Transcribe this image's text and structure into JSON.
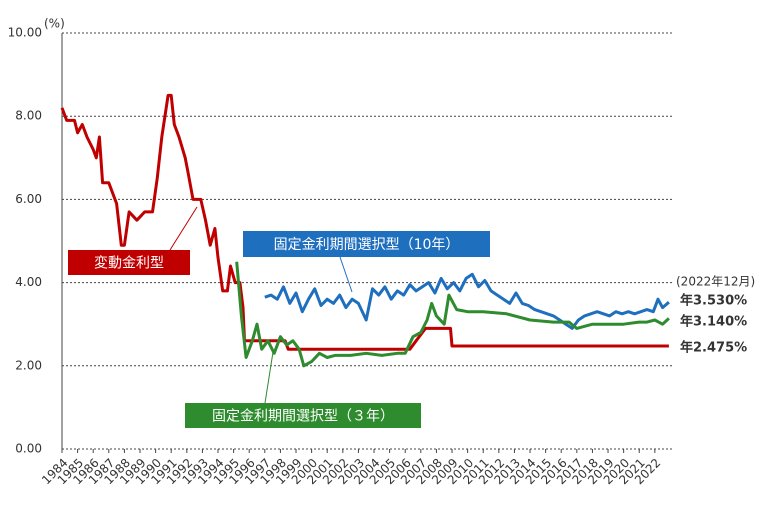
{
  "chart_data": {
    "type": "line",
    "y_label": "(%)",
    "xlim": [
      1984,
      2023.1
    ],
    "ylim": [
      0,
      10
    ],
    "yticks": [
      {
        "value": 0,
        "label": "0.00"
      },
      {
        "value": 2,
        "label": "2.00"
      },
      {
        "value": 4,
        "label": "4.00"
      },
      {
        "value": 6,
        "label": "6.00"
      },
      {
        "value": 8,
        "label": "8.00"
      },
      {
        "value": 10,
        "label": "10.00"
      }
    ],
    "xticks": [
      1984,
      1985,
      1986,
      1987,
      1988,
      1989,
      1990,
      1991,
      1992,
      1993,
      1994,
      1995,
      1996,
      1997,
      1998,
      1999,
      2000,
      2001,
      2002,
      2003,
      2004,
      2005,
      2006,
      2007,
      2008,
      2009,
      2010,
      2011,
      2012,
      2013,
      2014,
      2015,
      2016,
      2017,
      2018,
      2019,
      2020,
      2021,
      2022
    ],
    "grid": true,
    "date_note": "(2022年12月)",
    "series": [
      {
        "name": "変動金利型",
        "color": "#c00000",
        "end_label": "年2.475%",
        "x": [
          1984.0,
          1984.3,
          1984.8,
          1985.0,
          1985.3,
          1985.6,
          1986.0,
          1986.2,
          1986.4,
          1986.6,
          1987.0,
          1987.5,
          1987.8,
          1988.0,
          1988.3,
          1988.8,
          1989.3,
          1989.8,
          1990.1,
          1990.4,
          1990.8,
          1991.0,
          1991.2,
          1991.5,
          1991.9,
          1992.1,
          1992.4,
          1992.9,
          1993.2,
          1993.5,
          1993.8,
          1994.0,
          1994.3,
          1994.6,
          1994.8,
          1995.1,
          1995.4,
          1995.6,
          1995.7,
          1998.3,
          1998.5,
          2006.3,
          2006.7,
          2007.3,
          2008.9,
          2009.0,
          2022.9
        ],
        "values": [
          8.2,
          7.9,
          7.9,
          7.6,
          7.8,
          7.5,
          7.2,
          7.0,
          7.5,
          6.4,
          6.4,
          5.9,
          4.9,
          4.9,
          5.7,
          5.5,
          5.7,
          5.7,
          6.5,
          7.5,
          8.5,
          8.5,
          7.8,
          7.5,
          7.0,
          6.6,
          6.0,
          6.0,
          5.5,
          4.9,
          5.3,
          4.6,
          3.8,
          3.8,
          4.4,
          4.0,
          4.0,
          3.4,
          2.6,
          2.6,
          2.4,
          2.4,
          2.6,
          2.9,
          2.9,
          2.475,
          2.475
        ]
      },
      {
        "name": "固定金利期間選択型（10年）",
        "color": "#1f6fbf",
        "end_label": "年3.530%",
        "x": [
          1997.0,
          1997.4,
          1997.8,
          1998.2,
          1998.6,
          1999.0,
          1999.4,
          1999.8,
          2000.2,
          2000.6,
          2001.0,
          2001.4,
          2001.8,
          2002.2,
          2002.6,
          2003.0,
          2003.5,
          2003.9,
          2004.3,
          2004.7,
          2005.1,
          2005.5,
          2005.9,
          2006.3,
          2006.7,
          2007.1,
          2007.5,
          2007.9,
          2008.3,
          2008.7,
          2009.1,
          2009.5,
          2009.9,
          2010.3,
          2010.7,
          2011.1,
          2011.5,
          2011.9,
          2012.3,
          2012.7,
          2013.1,
          2013.5,
          2013.9,
          2014.3,
          2014.7,
          2015.1,
          2015.5,
          2015.9,
          2016.3,
          2016.7,
          2017.1,
          2017.5,
          2017.9,
          2018.3,
          2018.7,
          2019.1,
          2019.5,
          2019.9,
          2020.3,
          2020.7,
          2021.1,
          2021.5,
          2021.9,
          2022.2,
          2022.5,
          2022.9
        ],
        "values": [
          3.65,
          3.7,
          3.6,
          3.9,
          3.5,
          3.75,
          3.3,
          3.6,
          3.85,
          3.45,
          3.6,
          3.5,
          3.7,
          3.4,
          3.6,
          3.5,
          3.1,
          3.85,
          3.7,
          3.9,
          3.6,
          3.8,
          3.7,
          3.95,
          3.8,
          3.9,
          4.0,
          3.75,
          4.1,
          3.85,
          4.0,
          3.8,
          4.1,
          4.2,
          3.9,
          4.05,
          3.8,
          3.7,
          3.6,
          3.5,
          3.75,
          3.5,
          3.45,
          3.35,
          3.3,
          3.25,
          3.2,
          3.1,
          3.0,
          2.9,
          3.1,
          3.2,
          3.25,
          3.3,
          3.25,
          3.2,
          3.3,
          3.25,
          3.3,
          3.25,
          3.3,
          3.35,
          3.3,
          3.6,
          3.4,
          3.53
        ]
      },
      {
        "name": "固定金利期間選択型（３年）",
        "color": "#2e8b2e",
        "end_label": "年3.140%",
        "x": [
          1995.2,
          1995.5,
          1995.8,
          1996.2,
          1996.5,
          1996.8,
          1997.2,
          1997.6,
          1998.0,
          1998.4,
          1998.8,
          1999.2,
          1999.5,
          2000.0,
          2000.5,
          2001.0,
          2001.5,
          2002.5,
          2003.5,
          2004.5,
          2005.5,
          2006.0,
          2006.5,
          2007.0,
          2007.4,
          2007.7,
          2008.0,
          2008.5,
          2008.8,
          2009.3,
          2010.0,
          2011.0,
          2012.5,
          2014.0,
          2015.5,
          2016.5,
          2017.0,
          2017.5,
          2018.0,
          2019.0,
          2020.0,
          2021.0,
          2021.5,
          2022.0,
          2022.5,
          2022.9
        ],
        "values": [
          4.5,
          3.2,
          2.2,
          2.6,
          3.0,
          2.4,
          2.6,
          2.3,
          2.7,
          2.5,
          2.6,
          2.4,
          2.0,
          2.1,
          2.3,
          2.2,
          2.25,
          2.25,
          2.3,
          2.25,
          2.3,
          2.3,
          2.7,
          2.8,
          3.1,
          3.5,
          3.2,
          3.0,
          3.7,
          3.35,
          3.3,
          3.3,
          3.25,
          3.1,
          3.05,
          3.05,
          2.9,
          2.95,
          3.0,
          3.0,
          3.0,
          3.05,
          3.05,
          3.1,
          3.0,
          3.14
        ]
      }
    ]
  }
}
